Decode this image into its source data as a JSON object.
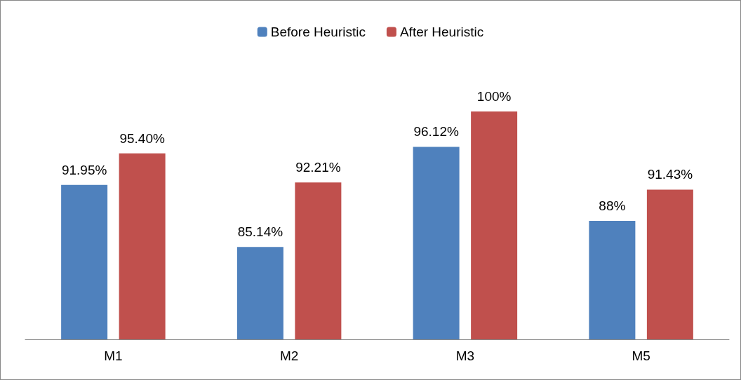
{
  "chart_data": {
    "type": "bar",
    "categories": [
      "M1",
      "M2",
      "M3",
      "M5"
    ],
    "series": [
      {
        "name": "Before Heuristic",
        "color": "#4f81bd",
        "values": [
          91.95,
          85.14,
          96.12,
          88
        ],
        "value_labels": [
          "91.95%",
          "85.14%",
          "96.12%",
          "88%"
        ]
      },
      {
        "name": "After Heuristic",
        "color": "#c0504d",
        "values": [
          95.4,
          92.21,
          100,
          91.43
        ],
        "value_labels": [
          "95.40%",
          "92.21%",
          "100%",
          "91.43%"
        ]
      }
    ],
    "ylim": [
      75,
      100
    ],
    "tick_labels": "x",
    "grid": false,
    "legend": "top"
  }
}
